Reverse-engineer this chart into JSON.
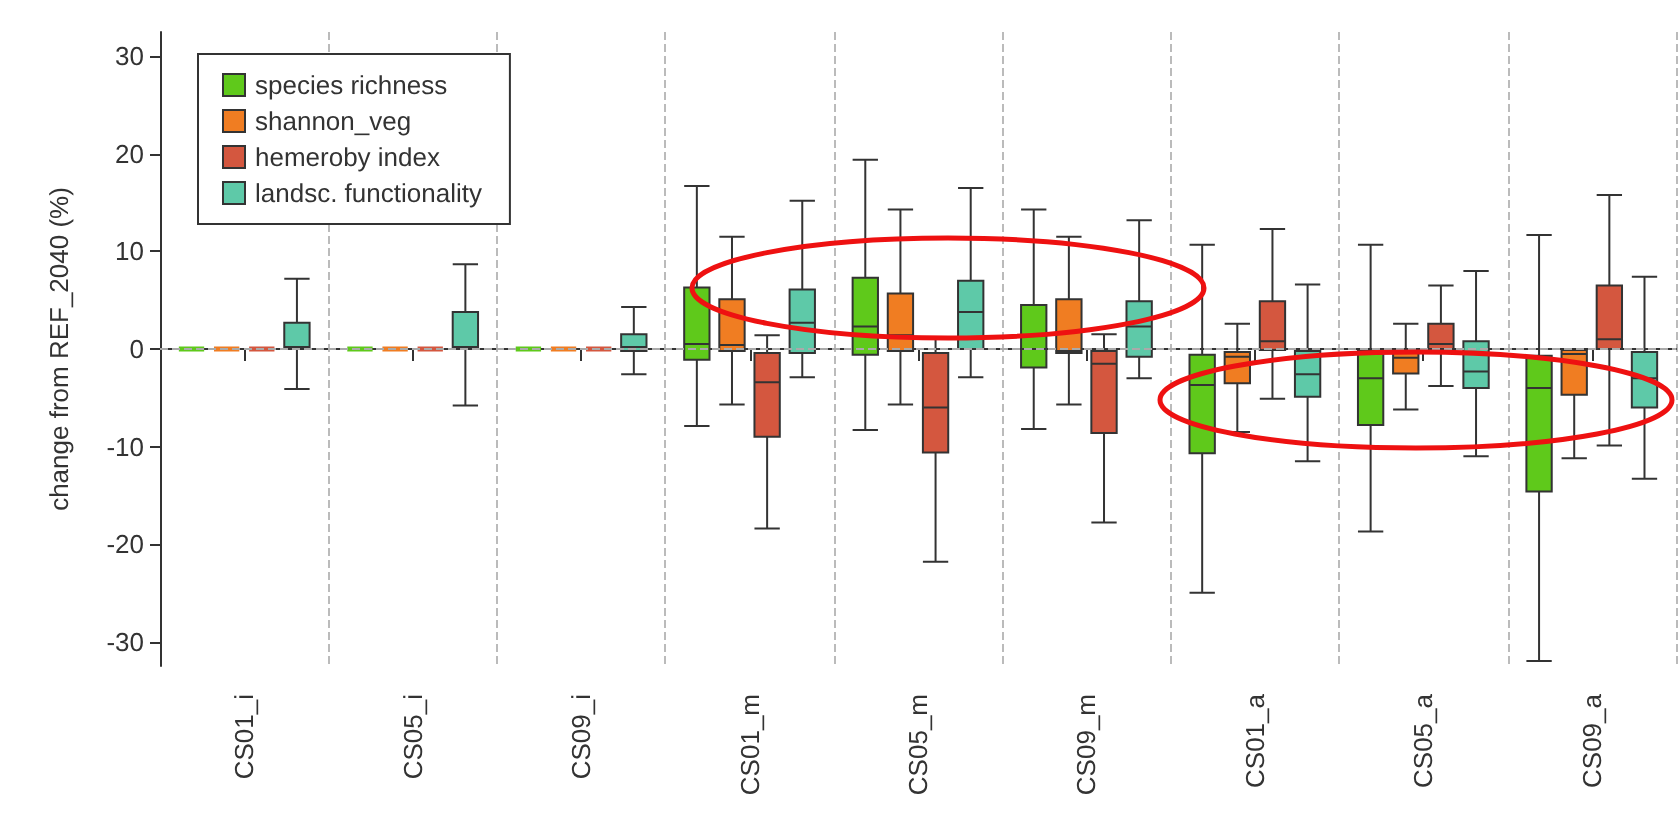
{
  "chart_data": {
    "type": "box",
    "ylabel": "change from REF_2040 (%)",
    "categories": [
      "CS01_i",
      "CS05_i",
      "CS09_i",
      "CS01_m",
      "CS05_m",
      "CS09_m",
      "CS01_a",
      "CS05_a",
      "CS09_a"
    ],
    "ylim": [
      -32.5,
      32.5
    ],
    "yticks": [
      -30,
      -20,
      -10,
      0,
      10,
      20,
      30
    ],
    "grid": "x",
    "legend": "top left",
    "ref_lines": [
      {
        "axis": "y",
        "value": 0,
        "line_style": "dashed",
        "color": "#aaaaaa"
      }
    ],
    "series": [
      {
        "name": "species richness",
        "color": "#5fc91b",
        "boxes": [
          {
            "low": 0,
            "q1": 0,
            "median": 0,
            "q3": 0,
            "high": 0
          },
          {
            "low": 0,
            "q1": 0,
            "median": 0,
            "q3": 0,
            "high": 0
          },
          {
            "low": 0,
            "q1": 0,
            "median": 0,
            "q3": 0,
            "high": 0
          },
          {
            "low": -7.9,
            "q1": -1.1,
            "median": 0.5,
            "q3": 6.3,
            "high": 16.7
          },
          {
            "low": -8.3,
            "q1": -0.6,
            "median": 2.3,
            "q3": 7.3,
            "high": 19.4
          },
          {
            "low": -8.2,
            "q1": -1.9,
            "median": 0,
            "q3": 4.5,
            "high": 14.3
          },
          {
            "low": -25,
            "q1": -10.7,
            "median": -3.7,
            "q3": -0.6,
            "high": 10.7
          },
          {
            "low": -18.7,
            "q1": -7.8,
            "median": -3,
            "q3": -0.1,
            "high": 10.7
          },
          {
            "low": -32,
            "q1": -14.6,
            "median": -4,
            "q3": -0.7,
            "high": 11.7
          }
        ]
      },
      {
        "name": "shannon_veg",
        "color": "#f07d22",
        "boxes": [
          {
            "low": 0,
            "q1": 0,
            "median": 0,
            "q3": 0,
            "high": 0
          },
          {
            "low": 0,
            "q1": 0,
            "median": 0,
            "q3": 0,
            "high": 0
          },
          {
            "low": 0,
            "q1": 0,
            "median": 0,
            "q3": 0,
            "high": 0
          },
          {
            "low": -5.7,
            "q1": -0.2,
            "median": 0.4,
            "q3": 5.1,
            "high": 11.5
          },
          {
            "low": -5.7,
            "q1": -0.2,
            "median": 1.4,
            "q3": 5.7,
            "high": 14.3
          },
          {
            "low": -5.7,
            "q1": -0.4,
            "median": -0.2,
            "q3": 5.1,
            "high": 11.5
          },
          {
            "low": -8.5,
            "q1": -3.5,
            "median": -0.8,
            "q3": -0.3,
            "high": 2.6
          },
          {
            "low": -6.2,
            "q1": -2.5,
            "median": -0.9,
            "q3": -0.1,
            "high": 2.6
          },
          {
            "low": -11.2,
            "q1": -4.7,
            "median": -0.5,
            "q3": -0.1,
            "high": -0.1
          }
        ]
      },
      {
        "name": "hemeroby index",
        "color": "#d4573f",
        "boxes": [
          {
            "low": 0,
            "q1": 0,
            "median": 0,
            "q3": 0,
            "high": 0
          },
          {
            "low": 0,
            "q1": 0,
            "median": 0,
            "q3": 0,
            "high": 0
          },
          {
            "low": 0,
            "q1": 0,
            "median": 0,
            "q3": 0,
            "high": 0
          },
          {
            "low": -18.4,
            "q1": -9,
            "median": -3.4,
            "q3": -0.4,
            "high": 1.4
          },
          {
            "low": -21.8,
            "q1": -10.6,
            "median": -6,
            "q3": -0.4,
            "high": 1.1
          },
          {
            "low": -17.8,
            "q1": -8.6,
            "median": -1.5,
            "q3": -0.2,
            "high": 1.5
          },
          {
            "low": -5.1,
            "q1": -0.1,
            "median": 0.8,
            "q3": 4.9,
            "high": 12.3
          },
          {
            "low": -3.8,
            "q1": 0,
            "median": 0.5,
            "q3": 2.6,
            "high": 6.5
          },
          {
            "low": -9.9,
            "q1": 0,
            "median": 1,
            "q3": 6.5,
            "high": 15.8
          }
        ]
      },
      {
        "name": "landsc. functionality",
        "color": "#5ec9a8",
        "boxes": [
          {
            "low": -4.1,
            "q1": 0,
            "median": 0.2,
            "q3": 2.7,
            "high": 7.2
          },
          {
            "low": -5.8,
            "q1": 0,
            "median": 0.2,
            "q3": 3.8,
            "high": 8.7
          },
          {
            "low": -2.6,
            "q1": -0.2,
            "median": 0.2,
            "q3": 1.5,
            "high": 4.3
          },
          {
            "low": -2.9,
            "q1": -0.4,
            "median": 2.7,
            "q3": 6.1,
            "high": 15.2
          },
          {
            "low": -2.9,
            "q1": 0,
            "median": 3.8,
            "q3": 7,
            "high": 16.5
          },
          {
            "low": -3,
            "q1": -0.8,
            "median": 2.3,
            "q3": 4.9,
            "high": 13.2
          },
          {
            "low": -11.5,
            "q1": -4.9,
            "median": -2.6,
            "q3": -0.2,
            "high": 6.6
          },
          {
            "low": -11,
            "q1": -4,
            "median": -2.3,
            "q3": 0.8,
            "high": 8
          },
          {
            "low": -13.3,
            "q1": -6,
            "median": -3,
            "q3": -0.3,
            "high": 7.4
          }
        ]
      }
    ]
  }
}
